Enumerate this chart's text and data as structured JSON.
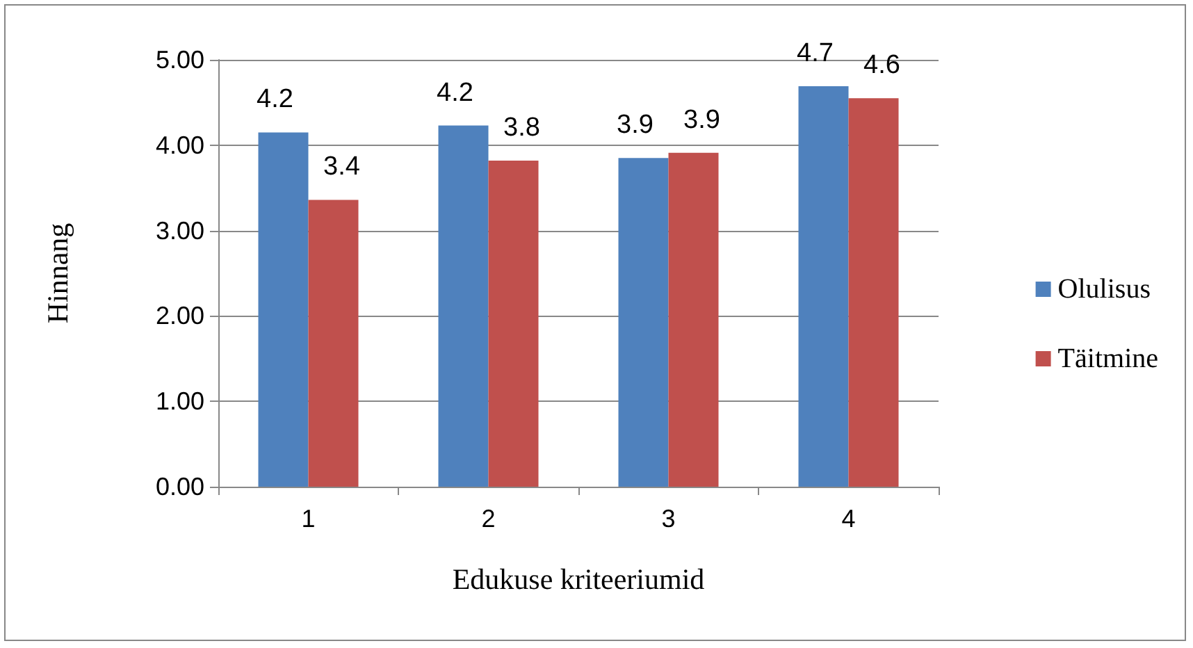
{
  "chart_data": {
    "type": "bar",
    "xlabel": "Edukuse kriteeriumid",
    "ylabel": "Hinnang",
    "categories": [
      "1",
      "2",
      "3",
      "4"
    ],
    "series": [
      {
        "name": "Olulisus",
        "color": "#4f81bd",
        "values": [
          4.15,
          4.23,
          3.85,
          4.69
        ],
        "value_labels": [
          "4.2",
          "4.2",
          "3.9",
          "4.7"
        ]
      },
      {
        "name": "Täitmine",
        "color": "#c0504d",
        "values": [
          3.36,
          3.82,
          3.91,
          4.55
        ],
        "value_labels": [
          "3.4",
          "3.8",
          "3.9",
          "4.6"
        ]
      }
    ],
    "ylim": [
      0,
      5
    ],
    "yticks": [
      {
        "value": 0,
        "label": "0.00"
      },
      {
        "value": 1,
        "label": "1.00"
      },
      {
        "value": 2,
        "label": "2.00"
      },
      {
        "value": 3,
        "label": "3.00"
      },
      {
        "value": 4,
        "label": "4.00"
      },
      {
        "value": 5,
        "label": "5.00"
      }
    ],
    "grid": "y",
    "legend": "right"
  }
}
